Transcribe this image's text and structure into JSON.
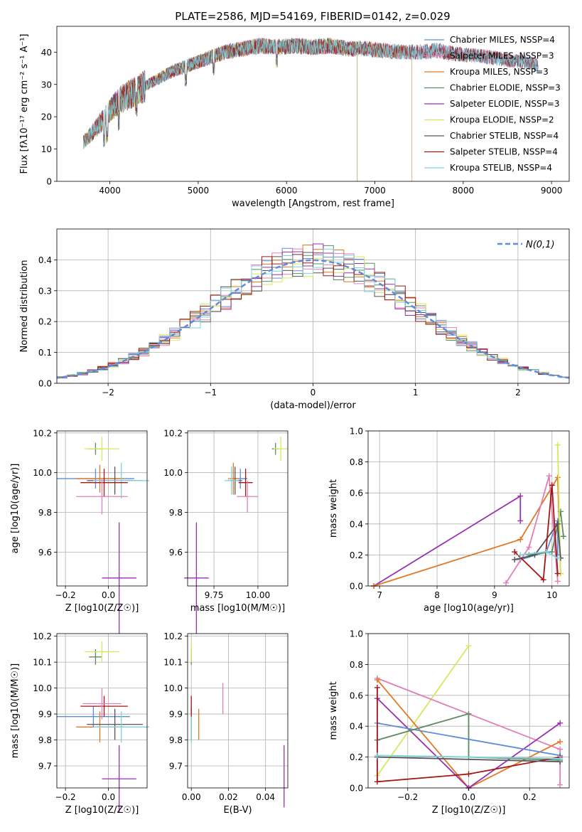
{
  "figure_title": "PLATE=2586, MJD=54169, FIBERID=0142, z=0.029",
  "chart_data": [
    {
      "id": "spectrum",
      "type": "line",
      "xlabel": "wavelength [Angstrom, rest frame]",
      "ylabel": "Flux [fλ10⁻¹⁷ erg cm⁻² s⁻¹ A⁻¹]",
      "xlim": [
        3400,
        9200
      ],
      "ylim": [
        0,
        48
      ],
      "xticks": [
        4000,
        5000,
        6000,
        7000,
        8000,
        9000
      ],
      "yticks": [
        0,
        10,
        20,
        30,
        40
      ],
      "grid": false,
      "legend_position": "top-right",
      "continuum": {
        "x": [
          3700,
          3800,
          3950,
          4100,
          4300,
          4500,
          4700,
          4900,
          5100,
          5300,
          5500,
          5700,
          5900,
          6100,
          6300,
          6500,
          6700,
          6900,
          7100,
          7300,
          7500,
          7700,
          7900,
          8100,
          8300,
          8500,
          8700,
          8850
        ],
        "y": [
          12,
          15,
          20,
          25,
          28,
          31,
          34,
          36,
          38,
          40,
          41,
          42,
          41.5,
          42,
          41.5,
          42,
          41,
          41,
          40.5,
          40,
          40,
          40.5,
          39.5,
          39,
          38.5,
          37.5,
          37,
          36
        ]
      },
      "series": [
        {
          "name": "Chabrier MILES, NSSP=4",
          "color": "#5f8cd8",
          "xmax": 8850
        },
        {
          "name": "Salpeter MILES, NSSP=3",
          "color": "#e27fb8",
          "xmax": 8850
        },
        {
          "name": "Kroupa MILES, NSSP=3",
          "color": "#e07826",
          "xmax": 7420
        },
        {
          "name": "Chabrier ELODIE, NSSP=3",
          "color": "#5e8a62",
          "xmax": 6800
        },
        {
          "name": "Salpeter ELODIE, NSSP=3",
          "color": "#9a2fb0",
          "xmax": 6800
        },
        {
          "name": "Kroupa ELODIE, NSSP=2",
          "color": "#d4e85c",
          "xmax": 6800
        },
        {
          "name": "Chabrier STELIB, NSSP=4",
          "color": "#555555",
          "xmax": 8850
        },
        {
          "name": "Salpeter STELIB, NSSP=4",
          "color": "#a31616",
          "xmax": 8850
        },
        {
          "name": "Kroupa STELIB, NSSP=4",
          "color": "#7fd0dc",
          "xmax": 8850
        }
      ]
    },
    {
      "id": "residuals",
      "type": "line",
      "xlabel": "(data-model)/error",
      "ylabel": "Normed distribution",
      "xlim": [
        -2.5,
        2.5
      ],
      "ylim": [
        0,
        0.5
      ],
      "xticks": [
        -2,
        -1,
        0,
        1,
        2
      ],
      "yticks": [
        0.0,
        0.1,
        0.2,
        0.3,
        0.4
      ],
      "grid": true,
      "legend_position": "top-right",
      "reference_curve": {
        "name": "N(0,1)",
        "color": "#5f8cd8",
        "mean": 0,
        "sigma": 1
      },
      "bin_width": 0.1
    },
    {
      "id": "age-vs-Z",
      "type": "scatter",
      "xlabel": "Z [log10(Z/Z☉)]",
      "ylabel": "age [log10(age/yr)]",
      "xlim": [
        -0.24,
        0.18
      ],
      "ylim": [
        9.43,
        10.21
      ],
      "xticks": [
        -0.2,
        0.0
      ],
      "yticks": [
        9.6,
        9.8,
        10.0,
        10.2
      ],
      "grid": true,
      "points": [
        {
          "x": -0.06,
          "y": 10.12,
          "xerr": 0.03,
          "yerr": 0.03,
          "color": "#5e8a62"
        },
        {
          "x": -0.03,
          "y": 10.12,
          "xerr": 0.08,
          "yerr": 0.06,
          "color": "#d4e85c"
        },
        {
          "x": -0.06,
          "y": 9.97,
          "xerr": 0.18,
          "yerr": 0.05,
          "color": "#5f8cd8"
        },
        {
          "x": -0.04,
          "y": 9.97,
          "xerr": 0.11,
          "yerr": 0.07,
          "color": "#e07826"
        },
        {
          "x": 0.03,
          "y": 9.96,
          "xerr": 0.13,
          "yerr": 0.07,
          "color": "#555555"
        },
        {
          "x": 0.06,
          "y": 9.96,
          "xerr": 0.13,
          "yerr": 0.09,
          "color": "#7fd0dc"
        },
        {
          "x": -0.02,
          "y": 9.95,
          "xerr": 0.11,
          "yerr": 0.07,
          "color": "#a31616"
        },
        {
          "x": -0.03,
          "y": 9.88,
          "xerr": 0.12,
          "yerr": 0.09,
          "color": "#e27fb8"
        },
        {
          "x": 0.05,
          "y": 9.47,
          "xerr": 0.08,
          "yerr": 0.28,
          "color": "#9a2fb0"
        }
      ]
    },
    {
      "id": "age-vs-mass",
      "type": "scatter",
      "xlabel": "mass [log10(M/M☉)]",
      "ylabel": "",
      "xlim": [
        9.6,
        10.17
      ],
      "ylim": [
        9.43,
        10.21
      ],
      "xticks": [
        9.75,
        10.0
      ],
      "yticks": [
        9.6,
        9.8,
        10.0,
        10.2
      ],
      "grid": true,
      "points": [
        {
          "x": 10.1,
          "y": 10.12,
          "xerr": 0.02,
          "yerr": 0.03,
          "color": "#5e8a62"
        },
        {
          "x": 10.13,
          "y": 10.12,
          "xerr": 0.04,
          "yerr": 0.06,
          "color": "#d4e85c"
        },
        {
          "x": 9.9,
          "y": 9.97,
          "xerr": 0.04,
          "yerr": 0.05,
          "color": "#5f8cd8"
        },
        {
          "x": 9.86,
          "y": 9.97,
          "xerr": 0.03,
          "yerr": 0.08,
          "color": "#e07826"
        },
        {
          "x": 9.87,
          "y": 9.96,
          "xerr": 0.04,
          "yerr": 0.07,
          "color": "#555555"
        },
        {
          "x": 9.85,
          "y": 9.96,
          "xerr": 0.04,
          "yerr": 0.07,
          "color": "#7fd0dc"
        },
        {
          "x": 9.93,
          "y": 9.95,
          "xerr": 0.04,
          "yerr": 0.07,
          "color": "#a31616"
        },
        {
          "x": 9.94,
          "y": 9.88,
          "xerr": 0.06,
          "yerr": 0.08,
          "color": "#e27fb8"
        },
        {
          "x": 9.65,
          "y": 9.47,
          "xerr": 0.07,
          "yerr": 0.28,
          "color": "#9a2fb0"
        }
      ]
    },
    {
      "id": "weight-vs-age",
      "type": "line",
      "xlabel": "age [log10(age/yr)]",
      "ylabel": "mass weight",
      "xlim": [
        6.8,
        10.3
      ],
      "ylim": [
        0,
        1.0
      ],
      "xticks": [
        7,
        8,
        9,
        10
      ],
      "yticks": [
        0.0,
        0.2,
        0.4,
        0.6,
        0.8,
        1.0
      ],
      "grid": true,
      "series": [
        {
          "color": "#9a2fb0",
          "x": [
            6.9,
            9.45,
            9.45
          ],
          "y": [
            0.0,
            0.58,
            0.42
          ]
        },
        {
          "color": "#e07826",
          "x": [
            6.9,
            9.45,
            10.1,
            10.15
          ],
          "y": [
            0.0,
            0.3,
            0.7,
            0.08
          ]
        },
        {
          "color": "#5f8cd8",
          "x": [
            9.45,
            9.9,
            10.1,
            10.1
          ],
          "y": [
            0.17,
            0.22,
            0.42,
            0.2
          ]
        },
        {
          "color": "#e27fb8",
          "x": [
            9.2,
            9.6,
            9.95,
            10.1
          ],
          "y": [
            0.02,
            0.25,
            0.71,
            0.03
          ]
        },
        {
          "color": "#5e8a62",
          "x": [
            9.6,
            10.0,
            10.15,
            10.2
          ],
          "y": [
            0.2,
            0.22,
            0.48,
            0.32
          ]
        },
        {
          "color": "#d4e85c",
          "x": [
            10.1,
            10.15
          ],
          "y": [
            0.91,
            0.08
          ]
        },
        {
          "color": "#555555",
          "x": [
            9.35,
            9.7,
            10.1,
            10.15
          ],
          "y": [
            0.17,
            0.2,
            0.4,
            0.18
          ]
        },
        {
          "color": "#a31616",
          "x": [
            9.35,
            9.85,
            10.0,
            10.1
          ],
          "y": [
            0.22,
            0.04,
            0.65,
            0.08
          ]
        },
        {
          "color": "#7fd0dc",
          "x": [
            9.45,
            9.9,
            10.1
          ],
          "y": [
            0.2,
            0.22,
            0.18
          ]
        }
      ]
    },
    {
      "id": "mass-vs-Z",
      "type": "scatter",
      "xlabel": "Z [log10(Z/Z☉)]",
      "ylabel": "mass [log10(M/M☉)]",
      "xlim": [
        -0.24,
        0.18
      ],
      "ylim": [
        9.615,
        10.21
      ],
      "xticks": [
        -0.2,
        0.0
      ],
      "yticks": [
        9.7,
        9.8,
        9.9,
        10.0,
        10.1,
        10.2
      ],
      "grid": true,
      "points": [
        {
          "x": -0.06,
          "y": 10.12,
          "xerr": 0.03,
          "yerr": 0.03,
          "color": "#5e8a62"
        },
        {
          "x": -0.03,
          "y": 10.14,
          "xerr": 0.08,
          "yerr": 0.04,
          "color": "#d4e85c"
        },
        {
          "x": -0.07,
          "y": 9.89,
          "xerr": 0.17,
          "yerr": 0.04,
          "color": "#5f8cd8"
        },
        {
          "x": -0.04,
          "y": 9.85,
          "xerr": 0.11,
          "yerr": 0.06,
          "color": "#e07826"
        },
        {
          "x": 0.03,
          "y": 9.86,
          "xerr": 0.13,
          "yerr": 0.06,
          "color": "#555555"
        },
        {
          "x": 0.06,
          "y": 9.85,
          "xerr": 0.13,
          "yerr": 0.06,
          "color": "#7fd0dc"
        },
        {
          "x": -0.02,
          "y": 9.93,
          "xerr": 0.11,
          "yerr": 0.04,
          "color": "#a31616"
        },
        {
          "x": -0.03,
          "y": 9.94,
          "xerr": 0.09,
          "yerr": 0.06,
          "color": "#e27fb8"
        },
        {
          "x": 0.05,
          "y": 9.65,
          "xerr": 0.08,
          "yerr": 0.13,
          "color": "#9a2fb0"
        }
      ]
    },
    {
      "id": "ebv",
      "type": "scatter",
      "xlabel": "E(B-V)",
      "ylabel": "",
      "xlim": [
        -0.002,
        0.052
      ],
      "ylim": [
        9.615,
        10.21
      ],
      "xticks": [
        0.0,
        0.02,
        0.04
      ],
      "yticks": [
        9.7,
        9.8,
        9.9,
        10.0,
        10.1,
        10.2
      ],
      "grid": true,
      "points": [
        {
          "x": 0.0,
          "y": 10.12,
          "xerr": 0,
          "yerr": 0.03,
          "color": "#5e8a62"
        },
        {
          "x": 0.0,
          "y": 10.14,
          "xerr": 0,
          "yerr": 0.04,
          "color": "#d4e85c"
        },
        {
          "x": 0.0,
          "y": 9.89,
          "xerr": 0,
          "yerr": 0.04,
          "color": "#5f8cd8"
        },
        {
          "x": 0.004,
          "y": 9.86,
          "xerr": 0,
          "yerr": 0.06,
          "color": "#e07826"
        },
        {
          "x": 0.0,
          "y": 9.86,
          "xerr": 0,
          "yerr": 0.06,
          "color": "#555555"
        },
        {
          "x": 0.0,
          "y": 9.85,
          "xerr": 0,
          "yerr": 0.06,
          "color": "#7fd0dc"
        },
        {
          "x": 0.0,
          "y": 9.93,
          "xerr": 0,
          "yerr": 0.04,
          "color": "#a31616"
        },
        {
          "x": 0.017,
          "y": 9.96,
          "xerr": 0,
          "yerr": 0.06,
          "color": "#e27fb8"
        },
        {
          "x": 0.05,
          "y": 9.66,
          "xerr": 0,
          "yerr": 0.12,
          "color": "#9a2fb0"
        }
      ]
    },
    {
      "id": "weight-vs-Z",
      "type": "line",
      "xlabel": "Z [log10(Z/Z☉)]",
      "ylabel": "mass weight",
      "xlim": [
        -0.33,
        0.33
      ],
      "ylim": [
        0,
        1.0
      ],
      "xticks": [
        -0.2,
        0.0,
        0.2
      ],
      "yticks": [
        0.0,
        0.2,
        0.4,
        0.6,
        0.8,
        1.0
      ],
      "grid": true,
      "series": [
        {
          "color": "#d4e85c",
          "x": [
            -0.3,
            0.0
          ],
          "y": [
            0.08,
            0.92
          ]
        },
        {
          "color": "#e27fb8",
          "x": [
            -0.3,
            0.3,
            0.3
          ],
          "y": [
            0.71,
            0.25,
            0.02
          ]
        },
        {
          "color": "#e07826",
          "x": [
            -0.3,
            0.0,
            0.3
          ],
          "y": [
            0.7,
            0.0,
            0.3
          ]
        },
        {
          "color": "#9a2fb0",
          "x": [
            -0.3,
            0.0,
            0.3
          ],
          "y": [
            0.58,
            0.0,
            0.42
          ]
        },
        {
          "color": "#5f8cd8",
          "x": [
            -0.3,
            0.3
          ],
          "y": [
            0.42,
            0.21
          ]
        },
        {
          "color": "#5e8a62",
          "x": [
            -0.3,
            0.0,
            0.0,
            0.3
          ],
          "y": [
            0.31,
            0.48,
            0.2,
            0.18
          ]
        },
        {
          "color": "#a31616",
          "x": [
            -0.3,
            -0.3,
            0.0,
            0.3
          ],
          "y": [
            0.65,
            0.04,
            0.09,
            0.2
          ]
        },
        {
          "color": "#555555",
          "x": [
            -0.3,
            0.3
          ],
          "y": [
            0.2,
            0.17
          ]
        },
        {
          "color": "#7fd0dc",
          "x": [
            -0.3,
            0.3
          ],
          "y": [
            0.21,
            0.19
          ]
        }
      ]
    }
  ]
}
